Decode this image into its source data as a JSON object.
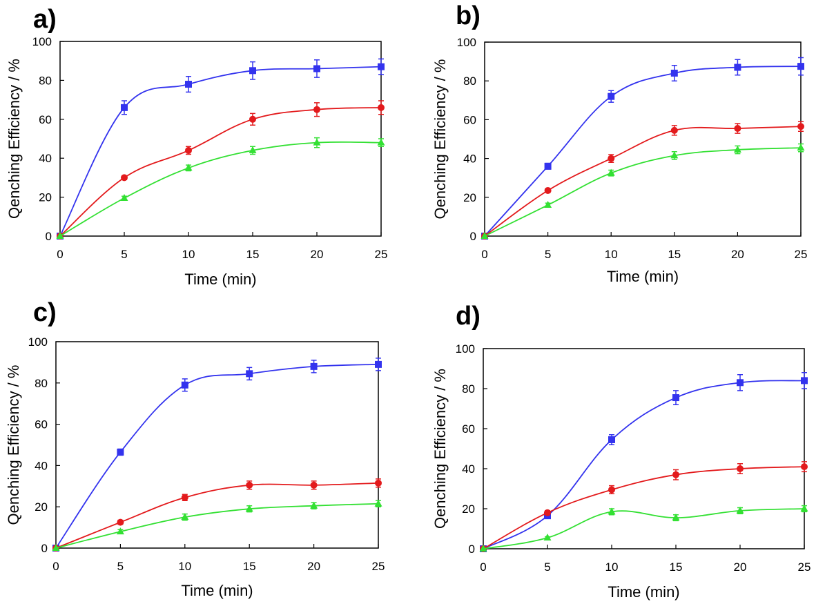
{
  "chart_data": [
    {
      "panel_label": "a)",
      "type": "line",
      "xlabel": "Time (min)",
      "ylabel": "Qenching Efficiency / %",
      "x": [
        0,
        5,
        10,
        15,
        20,
        25
      ],
      "xticks": [
        "0",
        "5",
        "10",
        "15",
        "20",
        "25"
      ],
      "yticks": [
        "0",
        "20",
        "40",
        "60",
        "80",
        "100"
      ],
      "xlim": [
        0,
        25
      ],
      "ylim": [
        0,
        100
      ],
      "grid": false,
      "series": [
        {
          "name": "blue squares",
          "color": "#3333ee",
          "marker": "square",
          "values": [
            0,
            66,
            78,
            85,
            86,
            87
          ],
          "errors": [
            0,
            3.5,
            4,
            4.5,
            4.5,
            4
          ]
        },
        {
          "name": "red circles",
          "color": "#e31a1c",
          "marker": "circle",
          "values": [
            0,
            30,
            44,
            60,
            65,
            66
          ],
          "errors": [
            0,
            1,
            2,
            3,
            3.5,
            3.5
          ]
        },
        {
          "name": "green triangles",
          "color": "#33e033",
          "marker": "triangle",
          "values": [
            0,
            19.5,
            35,
            44,
            48,
            48
          ],
          "errors": [
            0,
            1,
            1.5,
            2,
            2.5,
            2
          ]
        }
      ]
    },
    {
      "panel_label": "b)",
      "type": "line",
      "xlabel": "Time (min)",
      "ylabel": "Qenching Efficiency / %",
      "x": [
        0,
        5,
        10,
        15,
        20,
        25
      ],
      "xticks": [
        "0",
        "5",
        "10",
        "15",
        "20",
        "25"
      ],
      "yticks": [
        "0",
        "20",
        "40",
        "60",
        "80",
        "100"
      ],
      "xlim": [
        0,
        25
      ],
      "ylim": [
        0,
        100
      ],
      "grid": false,
      "series": [
        {
          "name": "blue squares",
          "color": "#3333ee",
          "marker": "square",
          "values": [
            0,
            36,
            72,
            84,
            87,
            87.5
          ],
          "errors": [
            0,
            1.5,
            3,
            4,
            4,
            4.5
          ]
        },
        {
          "name": "red circles",
          "color": "#e31a1c",
          "marker": "circle",
          "values": [
            0,
            23.5,
            40,
            54.5,
            55.5,
            56.5
          ],
          "errors": [
            0,
            1,
            2,
            2.5,
            2.5,
            2.5
          ]
        },
        {
          "name": "green triangles",
          "color": "#33e033",
          "marker": "triangle",
          "values": [
            0,
            16,
            32.5,
            41.5,
            44.5,
            45.5
          ],
          "errors": [
            0,
            1,
            1.5,
            2,
            2,
            2
          ]
        }
      ]
    },
    {
      "panel_label": "c)",
      "type": "line",
      "xlabel": "Time (min)",
      "ylabel": "Qenching Efficiency / %",
      "x": [
        0,
        5,
        10,
        15,
        20,
        25
      ],
      "xticks": [
        "0",
        "5",
        "10",
        "15",
        "20",
        "25"
      ],
      "yticks": [
        "0",
        "20",
        "40",
        "60",
        "80",
        "100"
      ],
      "xlim": [
        0,
        25
      ],
      "ylim": [
        0,
        100
      ],
      "grid": false,
      "series": [
        {
          "name": "blue squares",
          "color": "#3333ee",
          "marker": "square",
          "values": [
            0,
            46.5,
            79,
            84.5,
            88,
            89
          ],
          "errors": [
            0,
            1.5,
            3,
            3,
            3,
            3
          ]
        },
        {
          "name": "red circles",
          "color": "#e31a1c",
          "marker": "circle",
          "values": [
            0,
            12.5,
            24.5,
            30.5,
            30.5,
            31.5
          ],
          "errors": [
            0,
            1,
            1.5,
            2,
            2,
            2
          ]
        },
        {
          "name": "green triangles",
          "color": "#33e033",
          "marker": "triangle",
          "values": [
            0,
            8,
            15,
            19,
            20.5,
            21.5
          ],
          "errors": [
            0,
            1,
            1.5,
            1.5,
            1.5,
            1.5
          ]
        }
      ]
    },
    {
      "panel_label": "d)",
      "type": "line",
      "xlabel": "Time (min)",
      "ylabel": "Qenching Efficiency / %",
      "x": [
        0,
        5,
        10,
        15,
        20,
        25
      ],
      "xticks": [
        "0",
        "5",
        "10",
        "15",
        "20",
        "25"
      ],
      "yticks": [
        "0",
        "20",
        "40",
        "60",
        "80",
        "100"
      ],
      "xlim": [
        0,
        25
      ],
      "ylim": [
        0,
        100
      ],
      "grid": false,
      "series": [
        {
          "name": "blue squares",
          "color": "#3333ee",
          "marker": "square",
          "values": [
            0,
            16.5,
            54.5,
            75.5,
            83,
            84
          ],
          "errors": [
            0,
            1,
            2.5,
            3.5,
            4,
            4
          ]
        },
        {
          "name": "red circles",
          "color": "#e31a1c",
          "marker": "circle",
          "values": [
            0,
            18,
            29.5,
            37,
            40,
            41
          ],
          "errors": [
            0,
            1,
            2,
            2.5,
            2.5,
            2.5
          ]
        },
        {
          "name": "green triangles",
          "color": "#33e033",
          "marker": "triangle",
          "values": [
            0,
            5.5,
            18.5,
            15.5,
            19,
            20
          ],
          "errors": [
            0,
            0.5,
            1.5,
            1.5,
            1.5,
            1.5
          ]
        }
      ]
    }
  ]
}
